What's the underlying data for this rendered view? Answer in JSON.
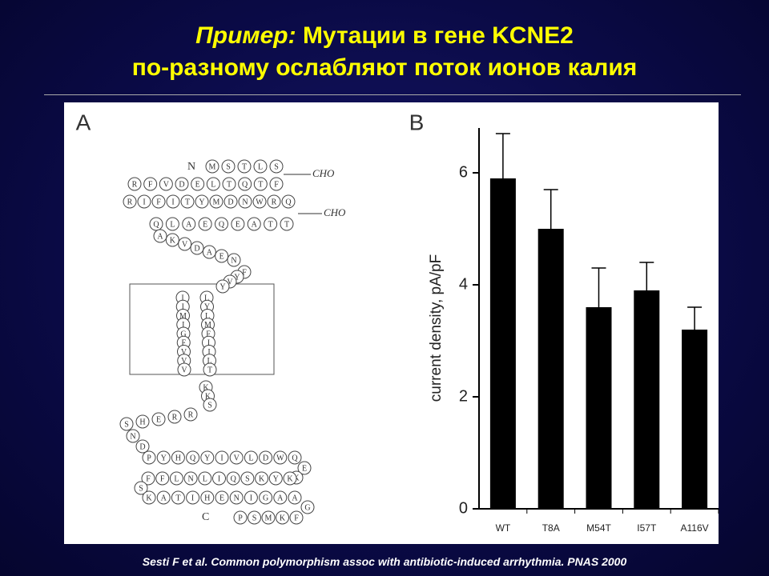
{
  "slide": {
    "title": {
      "prefix": "Пример:",
      "line1": "Мутации в гене KCNE2",
      "line2": "по-разному ослабляют поток ионов калия"
    },
    "figure": {
      "panel_a": {
        "label": "A",
        "n_term": "N",
        "c_term": "C",
        "glyco": [
          "CHO",
          "CHO"
        ],
        "segments": [
          [
            "M",
            "S",
            "T",
            "L",
            "S"
          ],
          [
            "R",
            "F",
            "V",
            "D",
            "E",
            "L",
            "T",
            "Q",
            "T",
            "F"
          ],
          [
            "R",
            "I",
            "F",
            "I",
            "T",
            "Y",
            "M",
            "D",
            "N",
            "W",
            "R",
            "Q"
          ],
          [
            "Q",
            "L",
            "A",
            "E",
            "Q",
            "E",
            "A",
            "T",
            "T"
          ],
          [
            "A",
            "K",
            "V",
            "D",
            "A",
            "E",
            "N"
          ],
          [
            "F",
            "Y",
            "V",
            "Y"
          ],
          [
            "I",
            "I",
            "M",
            "I",
            "G",
            "F",
            "V",
            "V",
            "V"
          ],
          [
            "L",
            "Y",
            "L",
            "M",
            "F",
            "I",
            "I",
            "L",
            "T"
          ],
          [
            "K",
            "K",
            "S"
          ],
          [
            "S",
            "H",
            "E",
            "R",
            "R"
          ],
          [
            "N",
            "D"
          ],
          [
            "P",
            "Y",
            "H",
            "Q",
            "Y",
            "I",
            "V",
            "L",
            "D",
            "W",
            "Q"
          ],
          [
            "E",
            "K"
          ],
          [
            "F",
            "F",
            "L",
            "N",
            "L",
            "I",
            "Q",
            "S",
            "K",
            "Y",
            "K"
          ],
          [
            "S"
          ],
          [
            "K",
            "A",
            "T",
            "I",
            "H",
            "E",
            "N",
            "I",
            "G",
            "A",
            "A"
          ],
          [
            "G"
          ],
          [
            "P",
            "S",
            "M",
            "K",
            "F"
          ]
        ]
      },
      "panel_b": {
        "label": "B"
      }
    },
    "citation": "Sesti F et al. Common polymorphism assoc with antibiotic-induced arrhythmia. PNAS 2000"
  },
  "chart_data": {
    "type": "bar",
    "categories": [
      "WT",
      "T8A",
      "M54T",
      "I57T",
      "A116V"
    ],
    "values": [
      5.9,
      5.0,
      3.6,
      3.9,
      3.2
    ],
    "errors": [
      0.8,
      0.7,
      0.7,
      0.5,
      0.4
    ],
    "color": "#000000",
    "ylabel": "current density, pA/pF",
    "ylim": [
      0,
      6.8
    ],
    "yticks": [
      0,
      2,
      4,
      6
    ]
  }
}
